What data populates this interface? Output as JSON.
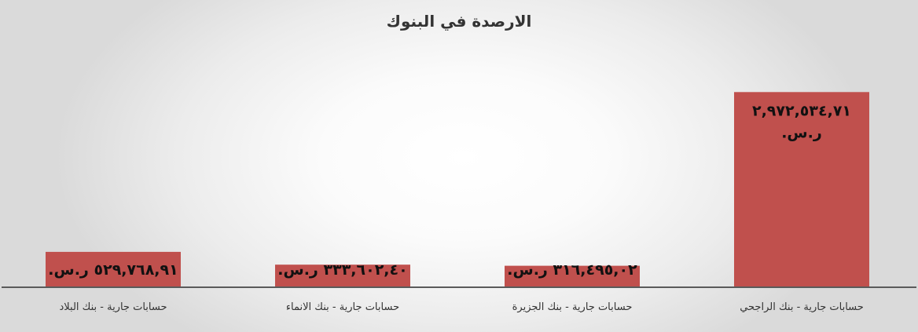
{
  "chart_data": {
    "type": "bar",
    "title": "الارصدة في البنوك",
    "categories": [
      "حسابات جارية - بنك الراجحي",
      "حسابات جارية - بنك الجزيرة",
      "حسابات جارية - بنك الانماء",
      "حسابات جارية - بنك البلاد"
    ],
    "values": [
      2972534.71,
      316495.02,
      333602.4,
      529768.91
    ],
    "data_labels": [
      [
        "٢,٩٧٢,٥٣٤,٧١",
        "ر.س."
      ],
      [
        "٣١٦,٤٩٥,٠٢ ر.س."
      ],
      [
        "٣٣٣,٦٠٢,٤٠ ر.س."
      ],
      [
        "٥٢٩,٧٦٨,٩١ ر.س."
      ]
    ],
    "ylim": [
      0,
      3000000
    ],
    "direction": "right-to-left",
    "grid": false,
    "legend": "none",
    "bar_color": "#c0504d"
  }
}
